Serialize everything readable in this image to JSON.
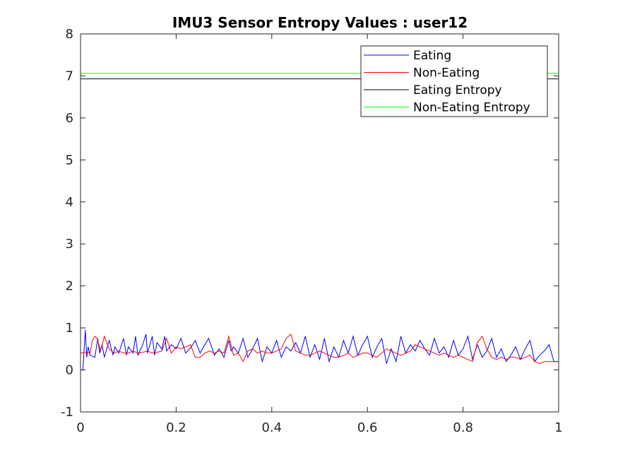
{
  "chart_data": {
    "type": "line",
    "title": "IMU3 Sensor Entropy Values : user12",
    "xlabel": "",
    "ylabel": "",
    "xlim": [
      0,
      1
    ],
    "ylim": [
      -1,
      8
    ],
    "xticks": [
      0,
      0.2,
      0.4,
      0.6,
      0.8,
      1
    ],
    "xtick_labels": [
      "0",
      "0.2",
      "0.4",
      "0.6",
      "0.8",
      "1"
    ],
    "yticks": [
      -1,
      0,
      1,
      2,
      3,
      4,
      5,
      6,
      7,
      8
    ],
    "ytick_labels": [
      "-1",
      "0",
      "1",
      "2",
      "3",
      "4",
      "5",
      "6",
      "7",
      "8"
    ],
    "grid": false,
    "legend_position": "top-right",
    "series": [
      {
        "name": "Eating",
        "color": "#0000ff",
        "x": [
          0,
          0.005,
          0.01,
          0.013,
          0.016,
          0.02,
          0.03,
          0.036,
          0.04,
          0.045,
          0.05,
          0.06,
          0.068,
          0.072,
          0.08,
          0.09,
          0.096,
          0.1,
          0.11,
          0.115,
          0.12,
          0.13,
          0.137,
          0.14,
          0.15,
          0.155,
          0.16,
          0.17,
          0.176,
          0.18,
          0.19,
          0.2,
          0.21,
          0.22,
          0.232,
          0.24,
          0.25,
          0.26,
          0.268,
          0.28,
          0.29,
          0.3,
          0.31,
          0.315,
          0.32,
          0.33,
          0.34,
          0.35,
          0.36,
          0.37,
          0.38,
          0.39,
          0.4,
          0.41,
          0.42,
          0.43,
          0.44,
          0.45,
          0.46,
          0.47,
          0.48,
          0.49,
          0.5,
          0.51,
          0.52,
          0.53,
          0.54,
          0.55,
          0.56,
          0.57,
          0.58,
          0.59,
          0.6,
          0.61,
          0.62,
          0.63,
          0.64,
          0.65,
          0.66,
          0.67,
          0.68,
          0.69,
          0.7,
          0.71,
          0.72,
          0.73,
          0.74,
          0.75,
          0.76,
          0.77,
          0.78,
          0.79,
          0.8,
          0.81,
          0.82,
          0.83,
          0.84,
          0.85,
          0.86,
          0.87,
          0.88,
          0.89,
          0.9,
          0.91,
          0.92,
          0.93,
          0.94,
          0.95,
          0.96,
          0.97,
          0.98,
          0.99,
          1
        ],
        "y": [
          0.0,
          0.0,
          0.95,
          0.3,
          0.55,
          0.35,
          0.3,
          0.75,
          0.4,
          0.6,
          0.3,
          0.7,
          0.35,
          0.55,
          0.4,
          0.75,
          0.35,
          0.55,
          0.4,
          0.8,
          0.35,
          0.6,
          0.85,
          0.4,
          0.8,
          0.35,
          0.65,
          0.5,
          0.8,
          0.45,
          0.6,
          0.5,
          0.75,
          0.4,
          0.55,
          0.7,
          0.4,
          0.6,
          0.75,
          0.35,
          0.5,
          0.3,
          0.7,
          0.45,
          0.55,
          0.4,
          0.75,
          0.3,
          0.5,
          0.75,
          0.2,
          0.55,
          0.4,
          0.7,
          0.3,
          0.55,
          0.45,
          0.65,
          0.4,
          0.8,
          0.3,
          0.6,
          0.25,
          0.75,
          0.2,
          0.55,
          0.3,
          0.7,
          0.4,
          0.8,
          0.35,
          0.6,
          0.8,
          0.3,
          0.55,
          0.75,
          0.15,
          0.5,
          0.2,
          0.8,
          0.4,
          0.6,
          0.45,
          0.7,
          0.5,
          0.35,
          0.75,
          0.4,
          0.55,
          0.3,
          0.7,
          0.35,
          0.5,
          0.8,
          0.25,
          0.6,
          0.3,
          0.45,
          0.75,
          0.3,
          0.5,
          0.2,
          0.35,
          0.55,
          0.25,
          0.5,
          0.7,
          0.2,
          0.35,
          0.45,
          0.6,
          0.2,
          0.2
        ]
      },
      {
        "name": "Non-Eating",
        "color": "#ff0000",
        "x": [
          0,
          0.01,
          0.02,
          0.025,
          0.03,
          0.035,
          0.042,
          0.05,
          0.06,
          0.07,
          0.08,
          0.09,
          0.1,
          0.11,
          0.12,
          0.13,
          0.14,
          0.15,
          0.16,
          0.17,
          0.18,
          0.19,
          0.2,
          0.21,
          0.22,
          0.23,
          0.24,
          0.25,
          0.26,
          0.27,
          0.28,
          0.29,
          0.3,
          0.31,
          0.32,
          0.33,
          0.34,
          0.35,
          0.36,
          0.37,
          0.38,
          0.39,
          0.4,
          0.41,
          0.42,
          0.43,
          0.44,
          0.45,
          0.46,
          0.47,
          0.48,
          0.49,
          0.5,
          0.51,
          0.52,
          0.53,
          0.54,
          0.55,
          0.56,
          0.57,
          0.58,
          0.59,
          0.6,
          0.61,
          0.62,
          0.63,
          0.64,
          0.65,
          0.66,
          0.67,
          0.68,
          0.69,
          0.7,
          0.71,
          0.72,
          0.73,
          0.74,
          0.75,
          0.76,
          0.77,
          0.78,
          0.79,
          0.8,
          0.81,
          0.82,
          0.83,
          0.84,
          0.85,
          0.86,
          0.87,
          0.88,
          0.89,
          0.9,
          0.91,
          0.92,
          0.93,
          0.94,
          0.95,
          0.96,
          0.97,
          0.98,
          0.99,
          1
        ],
        "y": [
          0.4,
          0.42,
          0.4,
          0.7,
          0.8,
          0.75,
          0.45,
          0.8,
          0.5,
          0.4,
          0.45,
          0.4,
          0.4,
          0.45,
          0.4,
          0.42,
          0.45,
          0.4,
          0.42,
          0.45,
          0.75,
          0.4,
          0.55,
          0.5,
          0.55,
          0.6,
          0.3,
          0.3,
          0.4,
          0.45,
          0.4,
          0.45,
          0.4,
          0.8,
          0.35,
          0.4,
          0.2,
          0.45,
          0.5,
          0.4,
          0.45,
          0.4,
          0.4,
          0.45,
          0.5,
          0.75,
          0.85,
          0.45,
          0.4,
          0.35,
          0.35,
          0.4,
          0.45,
          0.4,
          0.35,
          0.3,
          0.3,
          0.35,
          0.4,
          0.3,
          0.35,
          0.4,
          0.4,
          0.35,
          0.3,
          0.4,
          0.5,
          0.45,
          0.4,
          0.35,
          0.4,
          0.45,
          0.6,
          0.55,
          0.5,
          0.45,
          0.4,
          0.35,
          0.4,
          0.35,
          0.3,
          0.35,
          0.3,
          0.25,
          0.2,
          0.65,
          0.8,
          0.5,
          0.3,
          0.25,
          0.3,
          0.25,
          0.3,
          0.3,
          0.25,
          0.3,
          0.35,
          0.2,
          0.15,
          0.2,
          0.2,
          0.2,
          0.2
        ]
      },
      {
        "name": "Eating Entropy",
        "color": "#000000",
        "x": [
          0,
          1
        ],
        "y": [
          6.93,
          6.93
        ]
      },
      {
        "name": "Non-Eating Entropy",
        "color": "#00ff00",
        "x": [
          0,
          1
        ],
        "y": [
          7.06,
          7.06
        ]
      }
    ]
  }
}
